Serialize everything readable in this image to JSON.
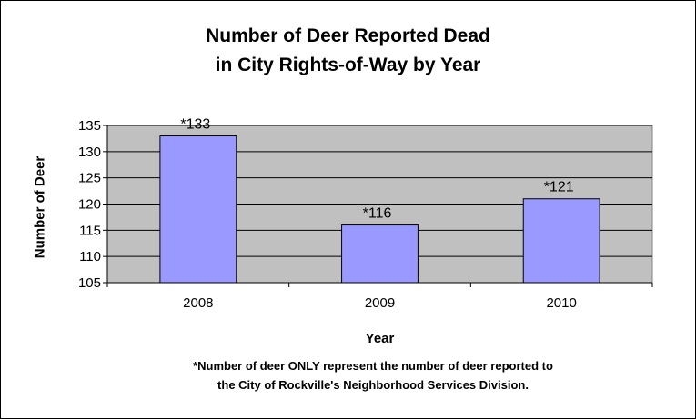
{
  "chart_data": {
    "type": "bar",
    "title_lines": [
      "Number of Deer Reported Dead",
      "in City Rights-of-Way by Year"
    ],
    "xlabel": "Year",
    "ylabel": "Number of Deer",
    "categories": [
      "2008",
      "2009",
      "2010"
    ],
    "values": [
      133,
      116,
      121
    ],
    "data_labels": [
      "*133",
      "*116",
      "*121"
    ],
    "ylim": [
      105,
      135
    ],
    "yticks": [
      105,
      110,
      115,
      120,
      125,
      130,
      135
    ],
    "grid": true,
    "plot_background": "#c0c0c0",
    "bar_color": "#9999ff",
    "footnote_lines": [
      "*Number of deer ONLY represent the number of deer reported to",
      "the City of Rockville's Neighborhood Services Division."
    ]
  }
}
